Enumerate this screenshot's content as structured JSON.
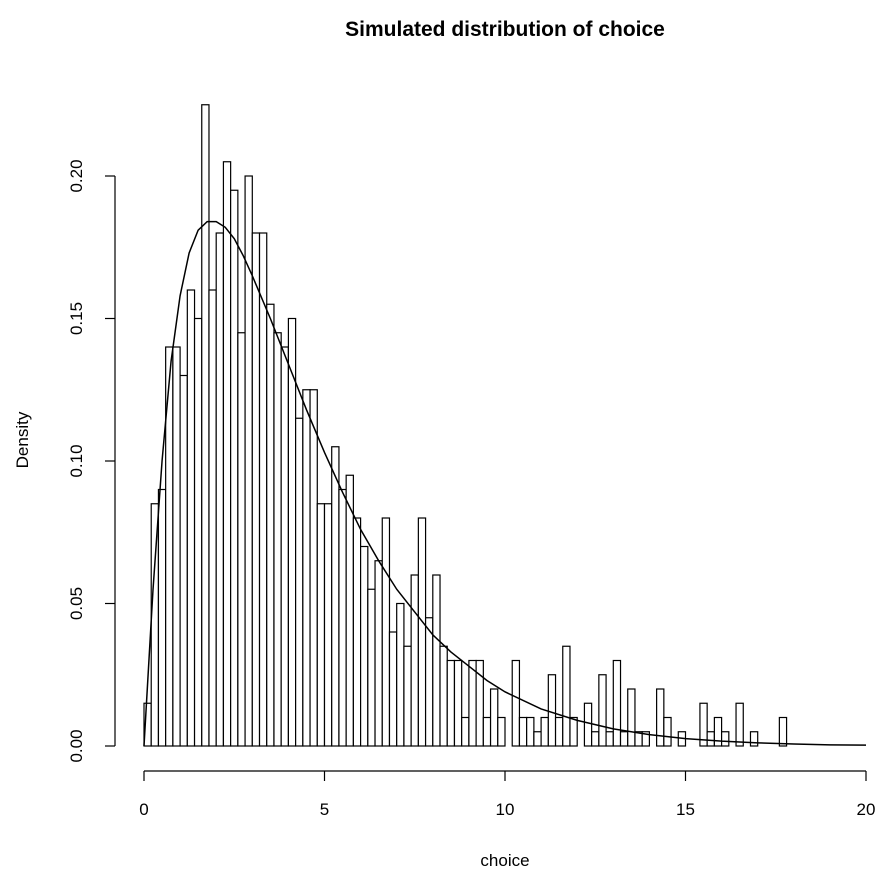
{
  "chart_data": {
    "type": "bar",
    "subtype": "histogram-with-density-curve",
    "title": "Simulated distribution of choice",
    "xlabel": "choice",
    "ylabel": "Density",
    "xlim": [
      0,
      20
    ],
    "ylim": [
      0,
      0.2
    ],
    "x_ticks": [
      0,
      5,
      10,
      15,
      20
    ],
    "y_ticks": [
      0.0,
      0.05,
      0.1,
      0.15,
      0.2
    ],
    "x_tick_labels": [
      "0",
      "5",
      "10",
      "15",
      "20"
    ],
    "y_tick_labels": [
      "0.00",
      "0.05",
      "0.10",
      "0.15",
      "0.20"
    ],
    "grid": false,
    "legend": "none",
    "bin_width": 0.2,
    "bin_start": 0,
    "densities": [
      0.015,
      0.085,
      0.09,
      0.14,
      0.14,
      0.13,
      0.16,
      0.15,
      0.225,
      0.16,
      0.18,
      0.205,
      0.195,
      0.145,
      0.2,
      0.18,
      0.18,
      0.155,
      0.145,
      0.14,
      0.15,
      0.115,
      0.125,
      0.125,
      0.085,
      0.085,
      0.105,
      0.09,
      0.095,
      0.08,
      0.07,
      0.055,
      0.065,
      0.08,
      0.04,
      0.05,
      0.035,
      0.06,
      0.08,
      0.045,
      0.06,
      0.035,
      0.03,
      0.03,
      0.01,
      0.03,
      0.03,
      0.01,
      0.02,
      0.01,
      0.0,
      0.03,
      0.01,
      0.01,
      0.005,
      0.01,
      0.025,
      0.01,
      0.035,
      0.01,
      0.0,
      0.015,
      0.005,
      0.025,
      0.005,
      0.03,
      0.005,
      0.02,
      0.005,
      0.005,
      0.0,
      0.02,
      0.01,
      0.0,
      0.005,
      0.0,
      0.0,
      0.015,
      0.005,
      0.01,
      0.005,
      0.0,
      0.015,
      0.0,
      0.005,
      0.0,
      0.0,
      0.0,
      0.01,
      0.0,
      0.0,
      0.0,
      0.0,
      0.0,
      0.0,
      0.0,
      0.0,
      0.0,
      0.0,
      0.0,
      0.0,
      0.0,
      0.0,
      0.0,
      0.0,
      0.0,
      0.0,
      0.0,
      0.0,
      0.0,
      0.0,
      0.0,
      0.0,
      0.0,
      0.0,
      0.0,
      0.0,
      0.0,
      0.0,
      0.0,
      0.0,
      0.0,
      0.0,
      0.0,
      0.0,
      0.0,
      0.0,
      0.0,
      0.0,
      0.0,
      0.0,
      0.0,
      0.0,
      0.0,
      0.0,
      0.0,
      0.0,
      0.0,
      0.0,
      0.0,
      0.0,
      0.0,
      0.0,
      0.0,
      0.0,
      0.0,
      0.0,
      0.0,
      0.0,
      0.0,
      0.0,
      0.0,
      0.0,
      0.0,
      0.0,
      0.0,
      0.0,
      0.0,
      0.0,
      0.0,
      0.0,
      0.0,
      0.0,
      0.0,
      0.0,
      0.0,
      0.0,
      0.0,
      0.0,
      0.0,
      0.0
    ],
    "density_curve": {
      "x": [
        0.0,
        0.25,
        0.5,
        0.75,
        1.0,
        1.25,
        1.5,
        1.75,
        2.0,
        2.25,
        2.5,
        2.75,
        3.0,
        3.5,
        4.0,
        4.5,
        5.0,
        5.5,
        6.0,
        6.5,
        7.0,
        7.5,
        8.0,
        8.5,
        9.0,
        9.5,
        10.0,
        11.0,
        12.0,
        13.0,
        14.0,
        15.0,
        16.0,
        17.0,
        18.0,
        19.0,
        20.0
      ],
      "y": [
        0.0,
        0.055,
        0.1,
        0.135,
        0.158,
        0.173,
        0.181,
        0.184,
        0.184,
        0.182,
        0.178,
        0.172,
        0.165,
        0.15,
        0.134,
        0.118,
        0.103,
        0.089,
        0.076,
        0.065,
        0.055,
        0.047,
        0.039,
        0.033,
        0.028,
        0.023,
        0.019,
        0.013,
        0.009,
        0.006,
        0.004,
        0.0026,
        0.0017,
        0.0011,
        0.0007,
        0.0004,
        0.0003
      ]
    }
  }
}
